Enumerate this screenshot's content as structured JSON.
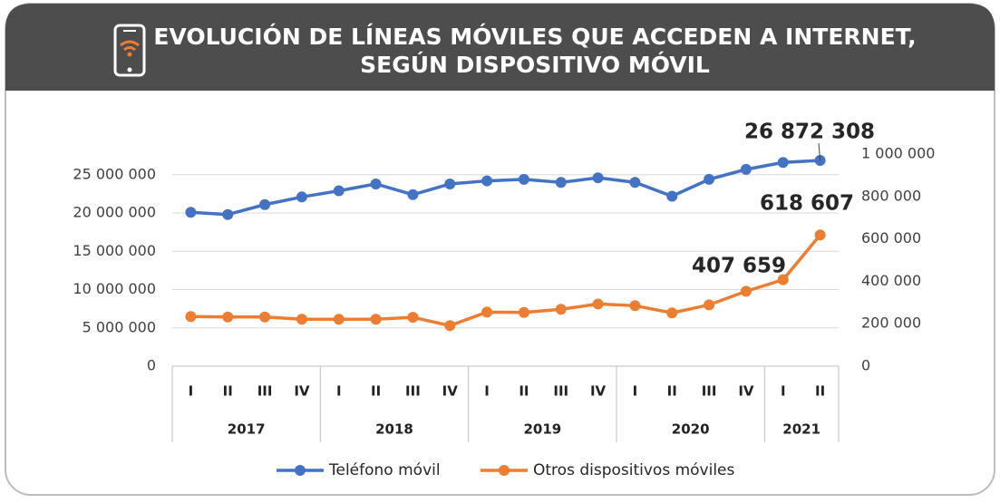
{
  "chart_data": {
    "type": "line",
    "title": "EVOLUCIÓN DE LÍNEAS MÓVILES QUE ACCEDEN A INTERNET,",
    "subtitle": "SEGÚN DISPOSITIVO MÓVIL",
    "categories": [
      "I",
      "II",
      "III",
      "IV",
      "I",
      "II",
      "III",
      "IV",
      "I",
      "II",
      "III",
      "IV",
      "I",
      "II",
      "III",
      "IV",
      "I",
      "II"
    ],
    "year_groups": [
      {
        "label": "2017",
        "quarters": 4
      },
      {
        "label": "2018",
        "quarters": 4
      },
      {
        "label": "2019",
        "quarters": 4
      },
      {
        "label": "2020",
        "quarters": 4
      },
      {
        "label": "2021",
        "quarters": 2
      }
    ],
    "series": [
      {
        "name": "Teléfono móvil",
        "color": "#4472c4",
        "values": [
          20100000,
          19800000,
          21100000,
          22100000,
          22900000,
          23800000,
          22400000,
          23800000,
          24200000,
          24400000,
          24000000,
          24600000,
          24000000,
          22200000,
          24400000,
          25700000,
          26600000,
          26872308
        ],
        "value_labels": [
          null,
          null,
          null,
          null,
          null,
          null,
          null,
          null,
          null,
          null,
          null,
          null,
          null,
          null,
          null,
          null,
          null,
          "26 872 308"
        ]
      },
      {
        "name": "Otros dispositivos móviles",
        "color": "#ed7d31",
        "axis": "y2",
        "values": [
          234000,
          232000,
          232000,
          221000,
          221000,
          221000,
          230000,
          191000,
          255000,
          253000,
          268000,
          293000,
          285000,
          251000,
          289000,
          353000,
          407659,
          618607
        ],
        "value_labels": [
          null,
          null,
          null,
          null,
          null,
          null,
          null,
          null,
          null,
          null,
          null,
          null,
          null,
          null,
          null,
          null,
          "407 659",
          "618 607"
        ]
      }
    ],
    "ylim": [
      0,
      27700000
    ],
    "yticks": [
      0,
      {
        "value": 5000000,
        "label": "5 000 000"
      },
      {
        "value": 10000000,
        "label": "10 000 000"
      },
      {
        "value": 15000000,
        "label": "15 000 000"
      },
      {
        "value": 20000000,
        "label": "20 000 000"
      },
      {
        "value": 25000000,
        "label": "25 000 000"
      }
    ],
    "y2lim": [
      0,
      1000000
    ],
    "y2ticks": [
      0,
      {
        "value": 200000,
        "label": "200 000"
      },
      {
        "value": 400000,
        "label": "400 000"
      },
      {
        "value": 600000,
        "label": "600 000"
      },
      {
        "value": 800000,
        "label": "800 000"
      },
      {
        "value": 1000000,
        "label": "1 000 000"
      }
    ],
    "grid": true,
    "legend": "bottom"
  }
}
